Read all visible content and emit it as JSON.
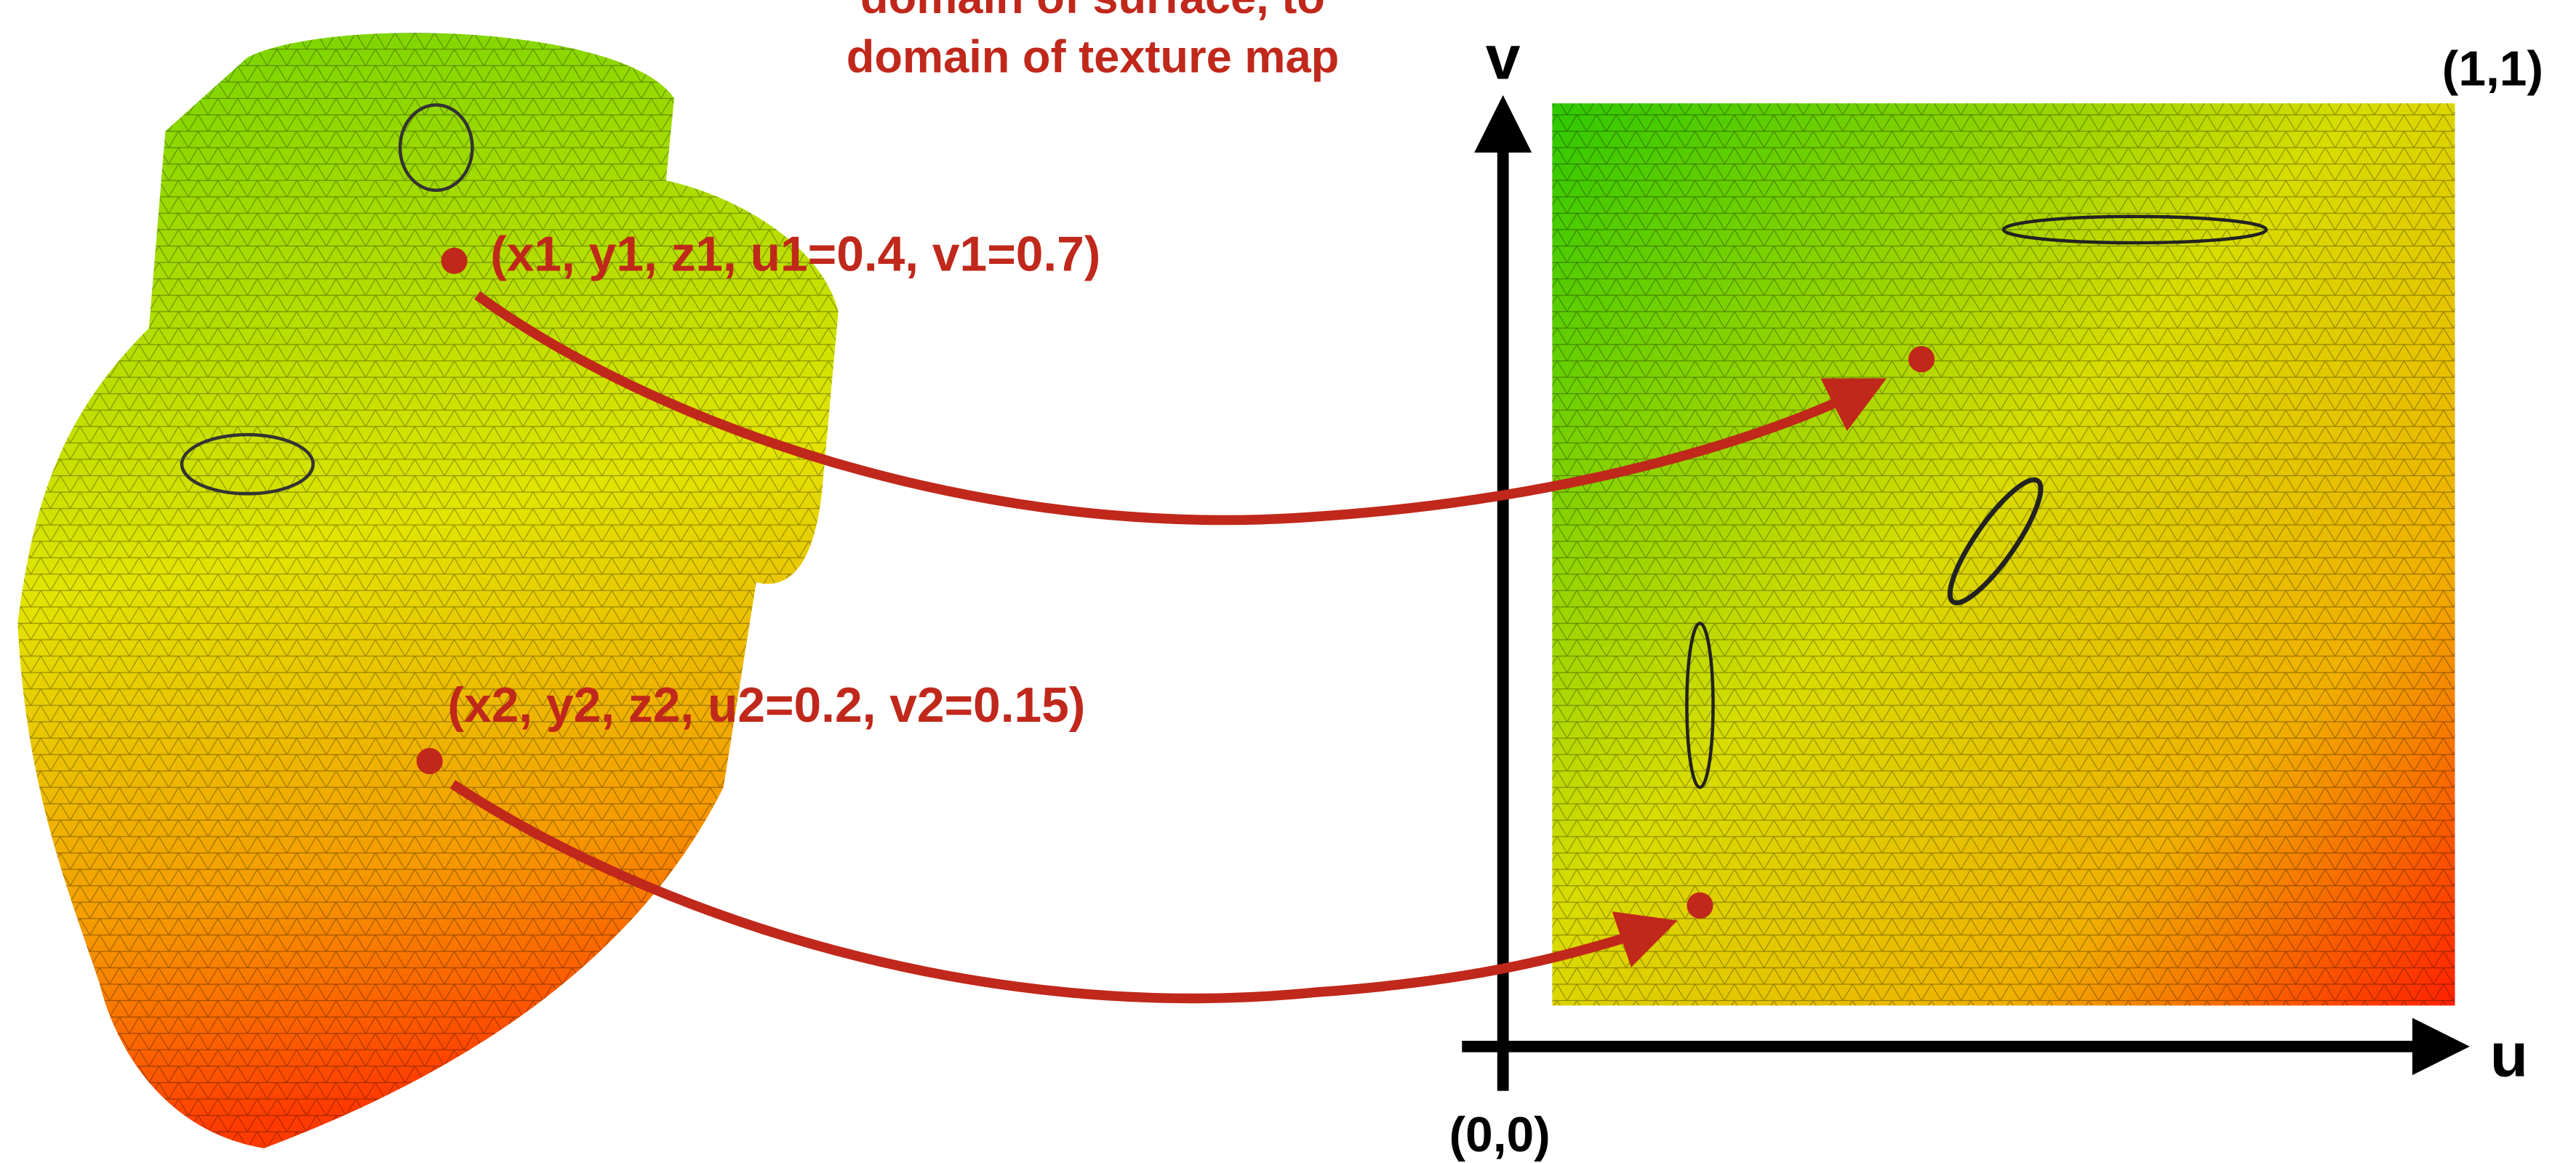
{
  "header": {
    "lines": [
      "domain of surface, to",
      "domain of texture map"
    ]
  },
  "points": [
    {
      "label": "(x1, y1, z1, u1=0.4, v1=0.7)"
    },
    {
      "label": "(x2, y2, z2, u2=0.2, v2=0.15)"
    }
  ],
  "axes": {
    "v": "v",
    "u": "u",
    "origin": "(0,0)",
    "corner": "(1,1)"
  }
}
